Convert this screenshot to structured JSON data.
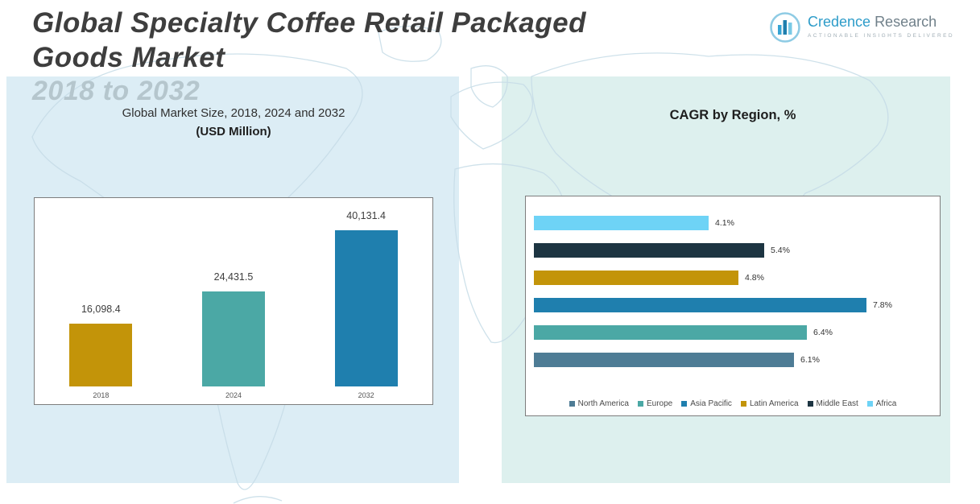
{
  "header": {
    "title_line1": "Global Specialty Coffee Retail Packaged",
    "title_line2": "Goods Market",
    "subtitle": "2018 to 2032",
    "logo": {
      "brand_primary": "Credence",
      "brand_secondary": "Research",
      "tagline": "Actionable Insights Delivered"
    }
  },
  "chart_data": [
    {
      "type": "bar",
      "title": "Global Market Size, 2018, 2024 and 2032",
      "subtitle": "(USD Million)",
      "categories": [
        "2018",
        "2024",
        "2032"
      ],
      "values": [
        16098.4,
        24431.5,
        40131.4
      ],
      "value_labels": [
        "16,098.4",
        "24,431.5",
        "40,131.4"
      ],
      "bar_colors": [
        "#C39409",
        "#4BA8A5",
        "#1F7FAE"
      ],
      "xlabel": "",
      "ylabel": "USD Million",
      "ylim": [
        0,
        45000
      ],
      "grid": false,
      "legend_position": "none"
    },
    {
      "type": "bar",
      "orientation": "horizontal",
      "title": "CAGR by Region, %",
      "series": [
        {
          "name": "Africa",
          "value": 4.1,
          "label": "4.1%",
          "color": "#6ED3F6"
        },
        {
          "name": "Middle East",
          "value": 5.4,
          "label": "5.4%",
          "color": "#1D3542"
        },
        {
          "name": "Latin America",
          "value": 4.8,
          "label": "4.8%",
          "color": "#C39409"
        },
        {
          "name": "Asia Pacific",
          "value": 7.8,
          "label": "7.8%",
          "color": "#1F7FAE"
        },
        {
          "name": "Europe",
          "value": 6.4,
          "label": "6.4%",
          "color": "#4BA8A5"
        },
        {
          "name": "North America",
          "value": 6.1,
          "label": "6.1%",
          "color": "#4E7C95"
        }
      ],
      "xlabel": "CAGR %",
      "xlim": [
        0,
        8.5
      ],
      "grid": false,
      "legend_position": "bottom",
      "legend": [
        {
          "label": "North America",
          "color": "#4E7C95"
        },
        {
          "label": "Europe",
          "color": "#4BA8A5"
        },
        {
          "label": "Asia Pacific",
          "color": "#1F7FAE"
        },
        {
          "label": "Latin America",
          "color": "#C39409"
        },
        {
          "label": "Middle East",
          "color": "#1D3542"
        },
        {
          "label": "Africa",
          "color": "#6ED3F6"
        }
      ]
    }
  ]
}
